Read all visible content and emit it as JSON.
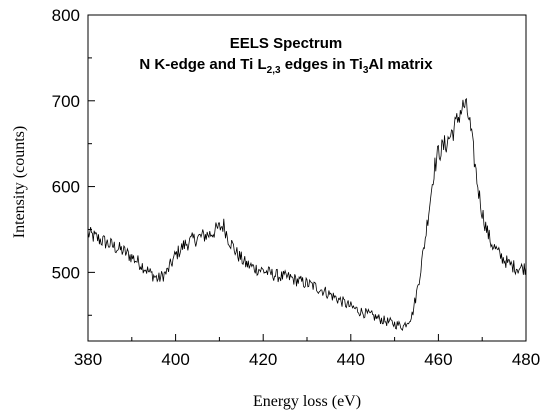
{
  "chart_data": {
    "type": "line",
    "title": "EELS Spectrum",
    "subtitle": {
      "p1": "N K-edge and Ti L",
      "sub1": "2,3",
      "p2": " edges in Ti",
      "sub2": "3",
      "p3": "Al matrix"
    },
    "xlabel": "Energy loss (eV)",
    "ylabel": "Intensity (counts)",
    "xlim": [
      380,
      480
    ],
    "ylim": [
      420,
      800
    ],
    "xticks": [
      380,
      400,
      420,
      440,
      460,
      480
    ],
    "yticks": [
      500,
      600,
      700,
      800
    ],
    "grid": false,
    "series": [
      {
        "color": "#000000",
        "x": [
          380,
          382,
          384,
          386,
          388,
          390,
          392,
          394,
          396,
          398,
          400,
          402,
          404,
          406,
          408,
          410,
          411,
          412,
          414,
          416,
          418,
          420,
          422,
          424,
          426,
          428,
          430,
          432,
          434,
          436,
          438,
          440,
          442,
          444,
          446,
          448,
          450,
          452,
          454,
          455,
          456,
          457,
          458,
          459,
          460,
          461,
          462,
          463,
          464,
          465,
          466,
          467,
          468,
          469,
          470,
          471,
          472,
          474,
          476,
          478,
          480
        ],
        "y": [
          545,
          540,
          535,
          530,
          525,
          518,
          510,
          500,
          492,
          500,
          520,
          532,
          538,
          542,
          545,
          552,
          555,
          540,
          522,
          510,
          505,
          502,
          498,
          495,
          494,
          490,
          487,
          483,
          478,
          472,
          466,
          460,
          455,
          451,
          447,
          443,
          440,
          437,
          450,
          475,
          505,
          540,
          580,
          620,
          640,
          645,
          652,
          662,
          672,
          688,
          695,
          680,
          640,
          600,
          570,
          550,
          535,
          520,
          510,
          505,
          505
        ]
      }
    ]
  }
}
